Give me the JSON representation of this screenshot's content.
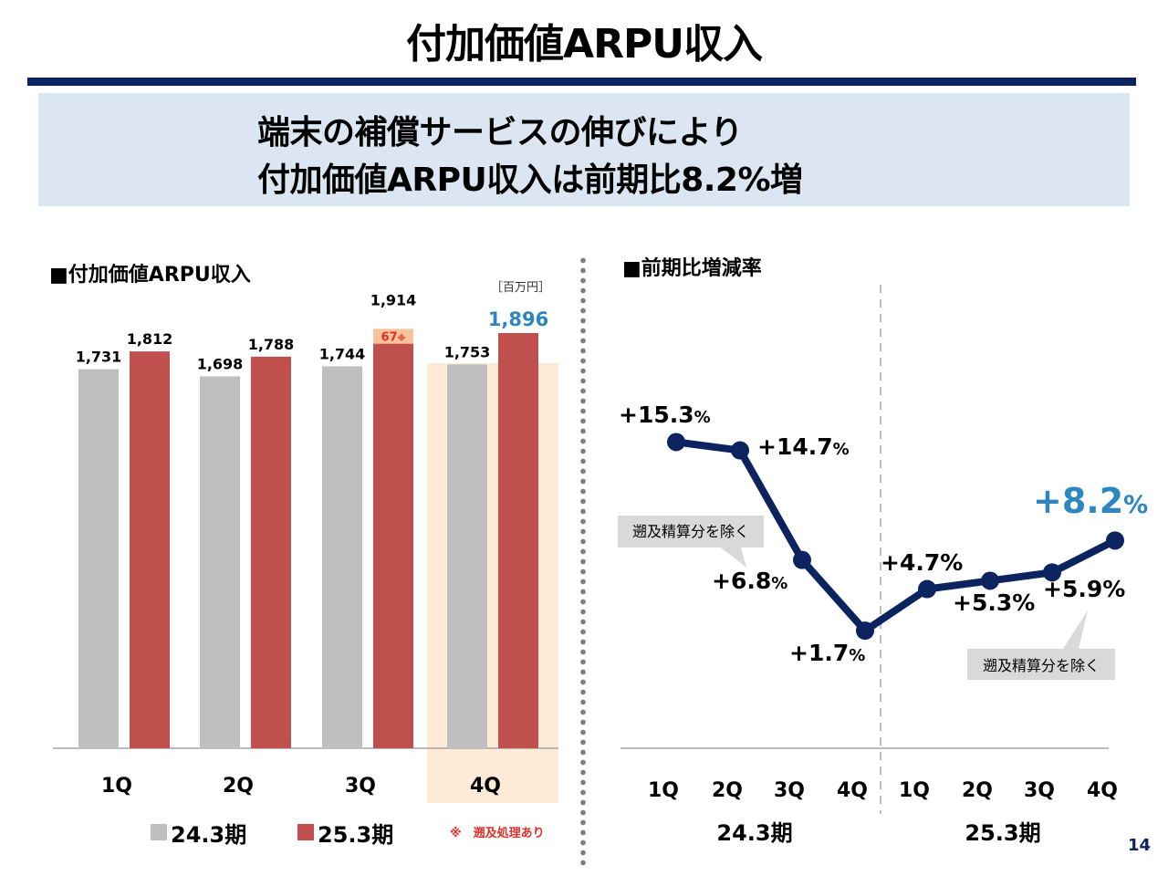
{
  "slide": {
    "title": "付加価値ARPU収入",
    "headline_line1": "端末の補償サービスの伸びにより",
    "headline_line2": "付加価値ARPU収入は前期比8.2%増",
    "page_number": "14"
  },
  "colors": {
    "navy": "#0b2460",
    "gray_bar": "#bfbfbf",
    "red_bar": "#c0504d",
    "highlight_panel": "#fdebd8",
    "accent_blue": "#2e86c1",
    "note_red": "#e0302a",
    "callout_gray": "#d9d9d9"
  },
  "chart_data": [
    {
      "type": "bar",
      "title": "■付加価値ARPU収入",
      "unit": "［百万円］",
      "categories": [
        "1Q",
        "2Q",
        "3Q",
        "4Q"
      ],
      "series": [
        {
          "name": "24.3期",
          "values": [
            1731,
            1698,
            1744,
            1753
          ],
          "labels": [
            "1,731",
            "1,698",
            "1,744",
            "1,753"
          ]
        },
        {
          "name": "25.3期",
          "values": [
            1812,
            1788,
            1914,
            1896
          ],
          "labels": [
            "1,812",
            "1,788",
            "1,914",
            "1,896"
          ]
        }
      ],
      "segment_note": {
        "category": "3Q",
        "series": "25.3期",
        "value": 67,
        "label": "67",
        "mark": "※"
      },
      "highlighted_category": "4Q",
      "ylim": [
        0,
        2000
      ],
      "legend": [
        "24.3期",
        "25.3期"
      ],
      "footnote": "※　遡及処理あり"
    },
    {
      "type": "line",
      "title": "■前期比増減率",
      "x": [
        "1Q",
        "2Q",
        "3Q",
        "4Q",
        "1Q",
        "2Q",
        "3Q",
        "4Q"
      ],
      "groups": [
        "24.3期",
        "25.3期"
      ],
      "series": [
        {
          "name": "",
          "values": [
            15.3,
            14.7,
            6.8,
            1.7,
            4.7,
            5.3,
            5.9,
            8.2
          ]
        }
      ],
      "point_labels": [
        {
          "number": "+15.3",
          "suffix": "%"
        },
        {
          "number": "+14.7",
          "suffix": "%"
        },
        {
          "number": "+6.8",
          "suffix": "%"
        },
        {
          "number": "+1.7",
          "suffix": "%"
        },
        {
          "number": "+4.7%",
          "suffix": ""
        },
        {
          "number": "+5.3%",
          "suffix": ""
        },
        {
          "number": "+5.9%",
          "suffix": ""
        },
        {
          "number": "+8.2",
          "suffix": "%"
        }
      ],
      "callouts": [
        "遡及精算分を除く",
        "遡及精算分を除く"
      ],
      "ylim": [
        0,
        20
      ]
    }
  ]
}
